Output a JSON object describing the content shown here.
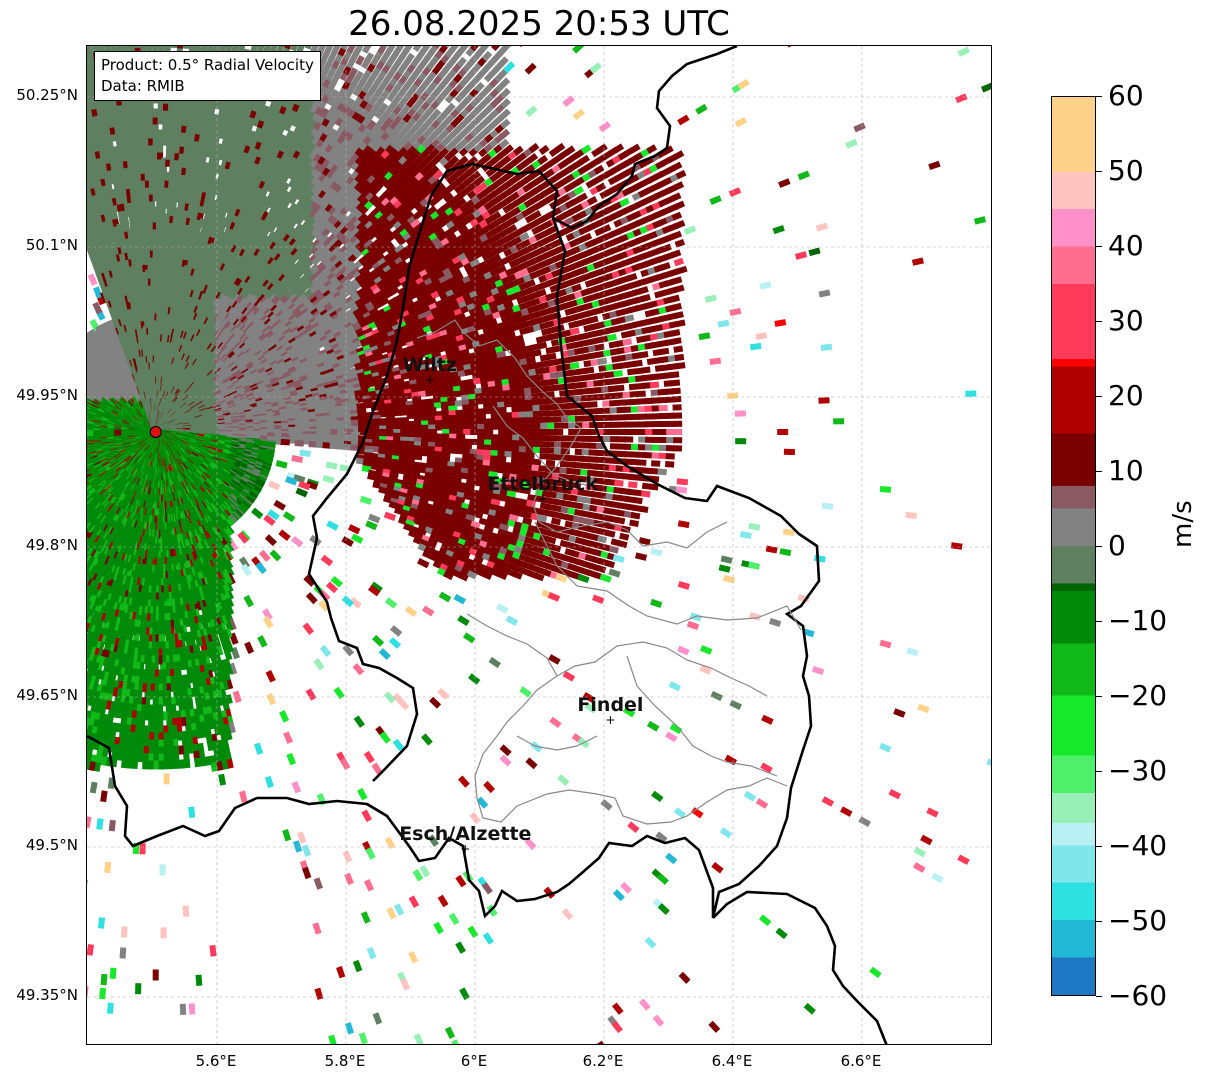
{
  "title": "26.08.2025 20:53 UTC",
  "info": {
    "product": "Product: 0.5° Radial Velocity",
    "data": "Data: RMIB"
  },
  "map": {
    "lon_range": [
      5.42,
      6.8
    ],
    "lat_range": [
      49.28,
      50.3
    ],
    "lat_ticks": [
      "50.25°N",
      "50.1°N",
      "49.95°N",
      "49.8°N",
      "49.65°N",
      "49.5°N",
      "49.35°N"
    ],
    "lon_ticks": [
      "5.6°E",
      "5.8°E",
      "6°E",
      "6.2°E",
      "6.4°E",
      "6.6°E"
    ],
    "radar_site": {
      "lon": 5.505,
      "lat": 49.915
    },
    "cities": [
      {
        "name": "Wiltz",
        "lon": 5.93,
        "lat": 49.967
      },
      {
        "name": "Ettelbruck",
        "lon": 6.105,
        "lat": 49.848
      },
      {
        "name": "Findel",
        "lon": 6.21,
        "lat": 49.627
      },
      {
        "name": "Esch/Alzette",
        "lon": 5.985,
        "lat": 49.498
      }
    ]
  },
  "colorbar": {
    "label": "m/s",
    "min": -60,
    "max": 60,
    "ticks": [
      "60",
      "50",
      "40",
      "30",
      "20",
      "10",
      "0",
      "−10",
      "−20",
      "−30",
      "−40",
      "−50",
      "−60"
    ],
    "stops": [
      {
        "v": -60,
        "c": "#1f78c4"
      },
      {
        "v": -55,
        "c": "#22b8d6"
      },
      {
        "v": -50,
        "c": "#2fe0e0"
      },
      {
        "v": -45,
        "c": "#7fe6ec"
      },
      {
        "v": -40,
        "c": "#b8f0f4"
      },
      {
        "v": -37,
        "c": "#98f0b8"
      },
      {
        "v": -33,
        "c": "#4ef06a"
      },
      {
        "v": -28,
        "c": "#18e82a"
      },
      {
        "v": -20,
        "c": "#10b818"
      },
      {
        "v": -13,
        "c": "#008a0a"
      },
      {
        "v": -6,
        "c": "#006400"
      },
      {
        "v": -5,
        "c": "#5e8060"
      },
      {
        "v": 0,
        "c": "#828282"
      },
      {
        "v": 5,
        "c": "#8a5a64"
      },
      {
        "v": 8,
        "c": "#7a0000"
      },
      {
        "v": 15,
        "c": "#b00000"
      },
      {
        "v": 24,
        "c": "#ff0000"
      },
      {
        "v": 25,
        "c": "#ff3a5a"
      },
      {
        "v": 35,
        "c": "#ff6e90"
      },
      {
        "v": 40,
        "c": "#ff90c8"
      },
      {
        "v": 45,
        "c": "#ffc4c0"
      },
      {
        "v": 50,
        "c": "#ffd28a"
      },
      {
        "v": 60,
        "c": "#ffa050"
      }
    ]
  }
}
